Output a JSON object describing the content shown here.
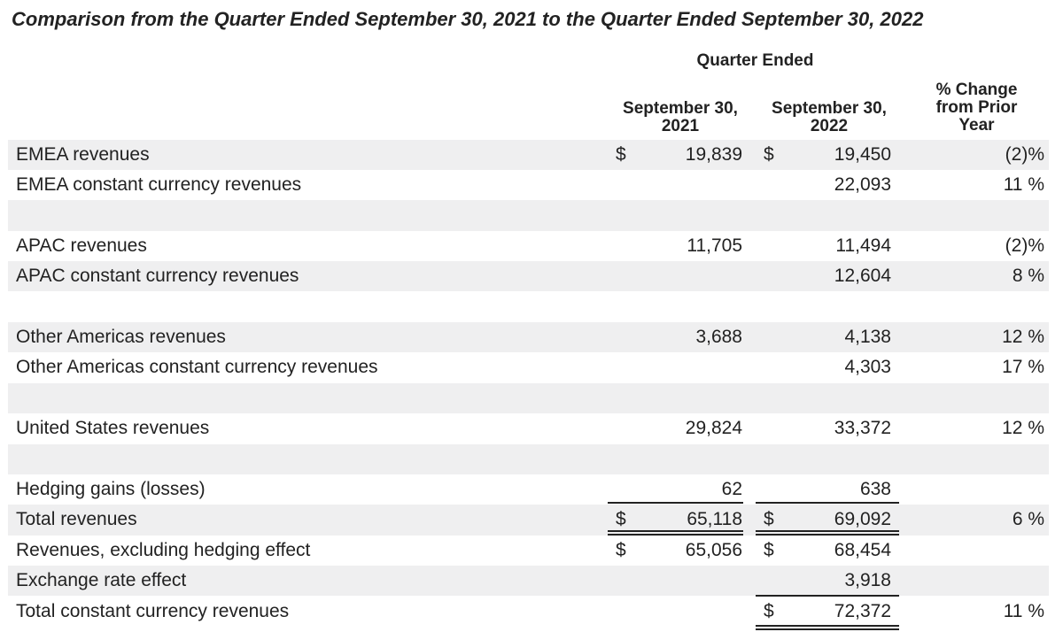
{
  "title": "Comparison from the Quarter Ended September 30, 2021 to the Quarter Ended September 30, 2022",
  "header": {
    "group": "Quarter Ended",
    "col1": [
      "September 30,",
      "2021"
    ],
    "col2": [
      "September 30,",
      "2022"
    ],
    "col3": [
      "% Change",
      "from Prior",
      "Year"
    ]
  },
  "rows": [
    {
      "label": "EMEA revenues",
      "d1": "$",
      "v1": "19,839",
      "d2": "$",
      "v2": "19,450",
      "pct": "(2)%"
    },
    {
      "label": "EMEA constant currency revenues",
      "d1": "",
      "v1": "",
      "d2": "",
      "v2": "22,093",
      "pct": "11 %"
    },
    {
      "label": "",
      "d1": "",
      "v1": "",
      "d2": "",
      "v2": "",
      "pct": ""
    },
    {
      "label": "APAC revenues",
      "d1": "",
      "v1": "11,705",
      "d2": "",
      "v2": "11,494",
      "pct": "(2)%"
    },
    {
      "label": "APAC constant currency revenues",
      "d1": "",
      "v1": "",
      "d2": "",
      "v2": "12,604",
      "pct": "8 %"
    },
    {
      "label": "",
      "d1": "",
      "v1": "",
      "d2": "",
      "v2": "",
      "pct": ""
    },
    {
      "label": "Other Americas revenues",
      "d1": "",
      "v1": "3,688",
      "d2": "",
      "v2": "4,138",
      "pct": "12 %"
    },
    {
      "label": "Other Americas constant currency revenues",
      "d1": "",
      "v1": "",
      "d2": "",
      "v2": "4,303",
      "pct": "17 %"
    },
    {
      "label": "",
      "d1": "",
      "v1": "",
      "d2": "",
      "v2": "",
      "pct": ""
    },
    {
      "label": "United States revenues",
      "d1": "",
      "v1": "29,824",
      "d2": "",
      "v2": "33,372",
      "pct": "12 %"
    },
    {
      "label": "",
      "d1": "",
      "v1": "",
      "d2": "",
      "v2": "",
      "pct": ""
    },
    {
      "label": "Hedging gains (losses)",
      "d1": "",
      "v1": "62",
      "d2": "",
      "v2": "638",
      "pct": ""
    },
    {
      "label": "Total revenues",
      "d1": "$",
      "v1": "65,118",
      "d2": "$",
      "v2": "69,092",
      "pct": "6 %"
    },
    {
      "label": "Revenues, excluding hedging effect",
      "d1": "$",
      "v1": "65,056",
      "d2": "$",
      "v2": "68,454",
      "pct": ""
    },
    {
      "label": "Exchange rate effect",
      "d1": "",
      "v1": "",
      "d2": "",
      "v2": "3,918",
      "pct": ""
    },
    {
      "label": "Total constant currency revenues",
      "d1": "",
      "v1": "",
      "d2": "$",
      "v2": "72,372",
      "pct": "11 %"
    }
  ]
}
